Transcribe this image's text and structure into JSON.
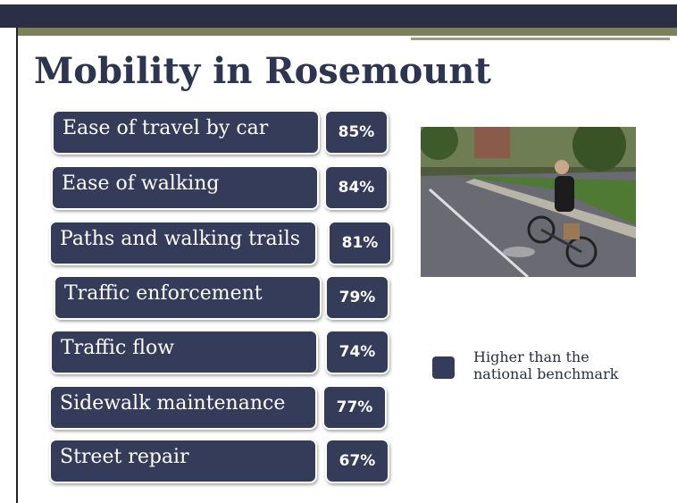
{
  "title": "Mobility in Rosemount",
  "items": [
    {
      "label": "Ease of travel by car",
      "value": "85%"
    },
    {
      "label": "Ease of walking",
      "value": "84%"
    },
    {
      "label": "Paths and walking trails",
      "value": "81%"
    },
    {
      "label": "Traffic enforcement",
      "value": "79%"
    },
    {
      "label": "Traffic flow",
      "value": "74%"
    },
    {
      "label": "Sidewalk maintenance",
      "value": "77%"
    },
    {
      "label": "Street repair",
      "value": "67%"
    }
  ],
  "legend": {
    "label": "Higher than the national benchmark"
  }
}
